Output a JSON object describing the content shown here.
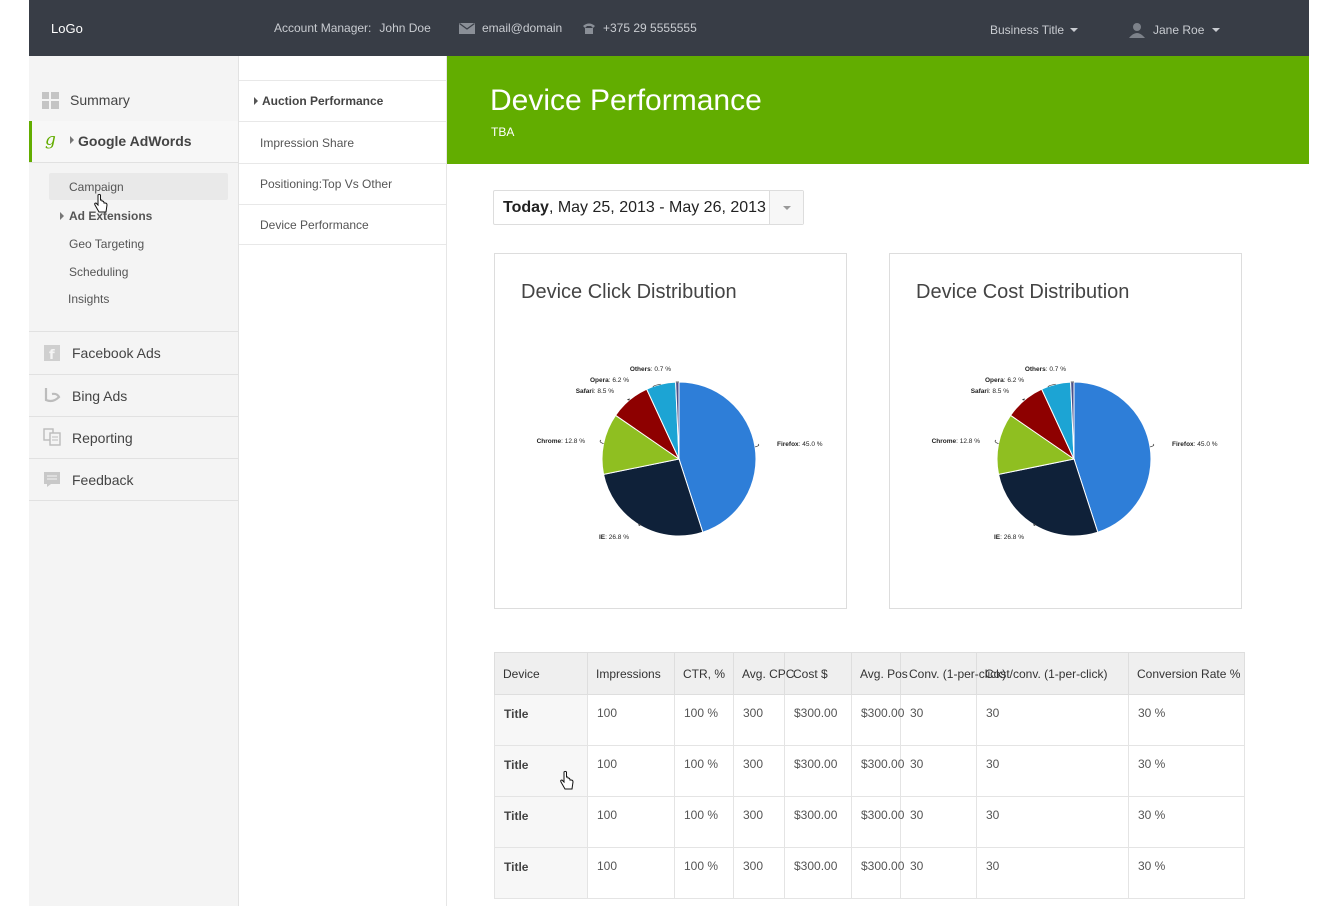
{
  "topbar": {
    "logo": "LoGo",
    "account_label": "Account Manager:",
    "account_name": "John Doe",
    "email": "email@domain",
    "phone": "+375 29 5555555",
    "business": "Business Title",
    "user": "Jane Roe"
  },
  "sidebar": {
    "summary": "Summary",
    "adwords": "Google AdWords",
    "adwords_sub": [
      "Campaign",
      "Ad Extensions",
      "Geo Targeting",
      "Scheduling",
      "Insights"
    ],
    "facebook": "Facebook Ads",
    "bing": "Bing Ads",
    "reporting": "Reporting",
    "feedback": "Feedback"
  },
  "subcolumn": [
    "Auction Performance",
    "Impression Share",
    "Positioning:Top Vs Other",
    "Device Performance"
  ],
  "banner": {
    "title": "Device Performance",
    "subtitle": "TBA"
  },
  "datepicker": {
    "bold": "Today",
    "range": ", May 25, 2013 - May 26, 2013"
  },
  "chart_data": [
    {
      "type": "pie",
      "title": "Device Click Distribution",
      "slices": [
        {
          "label": "Firefox",
          "value": 45.0,
          "pct": "45.0 %",
          "color": "#2e7ed8"
        },
        {
          "label": "IE",
          "value": 26.8,
          "pct": "26.8 %",
          "color": "#0f2139"
        },
        {
          "label": "Chrome",
          "value": 12.8,
          "pct": "12.8 %",
          "color": "#8fbf21"
        },
        {
          "label": "Safari",
          "value": 8.5,
          "pct": "8.5 %",
          "color": "#8e0000"
        },
        {
          "label": "Opera",
          "value": 6.2,
          "pct": "6.2 %",
          "color": "#1ca4d4"
        },
        {
          "label": "Others",
          "value": 0.7,
          "pct": "0.7 %",
          "color": "#4b4f8a"
        }
      ]
    },
    {
      "type": "pie",
      "title": "Device Cost Distribution",
      "slices": [
        {
          "label": "Firefox",
          "value": 45.0,
          "pct": "45.0 %",
          "color": "#2e7ed8"
        },
        {
          "label": "IE",
          "value": 26.8,
          "pct": "26.8 %",
          "color": "#0f2139"
        },
        {
          "label": "Chrome",
          "value": 12.8,
          "pct": "12.8 %",
          "color": "#8fbf21"
        },
        {
          "label": "Safari",
          "value": 8.5,
          "pct": "8.5 %",
          "color": "#8e0000"
        },
        {
          "label": "Opera",
          "value": 6.2,
          "pct": "6.2 %",
          "color": "#1ca4d4"
        },
        {
          "label": "Others",
          "value": 0.7,
          "pct": "0.7 %",
          "color": "#4b4f8a"
        }
      ]
    }
  ],
  "table": {
    "headers": [
      "Device",
      "Impressions",
      "CTR, %",
      "Avg. CPC",
      "Cost $",
      "Avg. Pos",
      "Conv. (1-per-click)",
      "Cost/conv. (1-per-click)",
      "Conversion Rate %"
    ],
    "rows": [
      [
        "Title",
        "100",
        "100 %",
        "300",
        "$300.00",
        "$300.00",
        "30",
        "30",
        "30 %"
      ],
      [
        "Title",
        "100",
        "100 %",
        "300",
        "$300.00",
        "$300.00",
        "30",
        "30",
        "30 %"
      ],
      [
        "Title",
        "100",
        "100 %",
        "300",
        "$300.00",
        "$300.00",
        "30",
        "30",
        "30 %"
      ],
      [
        "Title",
        "100",
        "100 %",
        "300",
        "$300.00",
        "$300.00",
        "30",
        "30",
        "30 %"
      ]
    ]
  }
}
